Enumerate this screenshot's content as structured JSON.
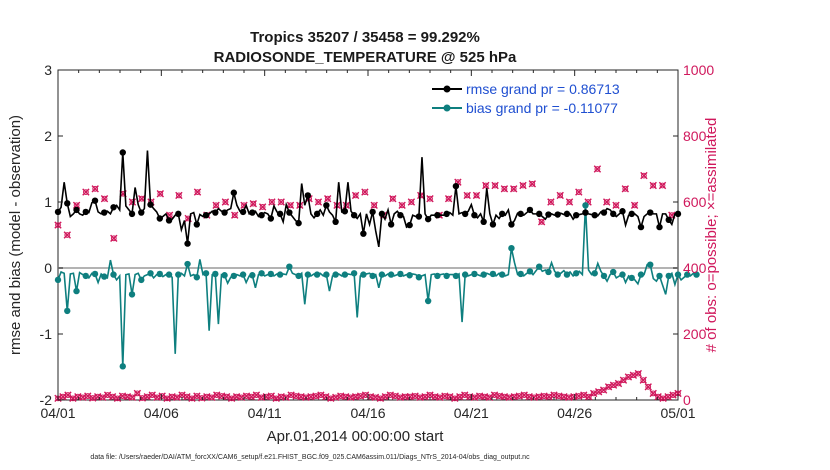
{
  "chart_data": {
    "type": "line",
    "title": "Tropics 35207 / 35458 = 99.292%",
    "subtitle": "RADIOSONDE_TEMPERATURE @ 525 hPa",
    "xlabel": "Apr.01,2014 00:00:00 start",
    "ylabel": "rmse and bias (model - observation)",
    "ylabel_right": "# of obs: o=possible; ×=assimilated",
    "footnote": "data file: /Users/raeder/DAI/ATM_forcXX/CAM6_setup/f.e21.FHIST_BGC.f09_025.CAM6assim.011/Diags_NTrS_2014-04/obs_diag_output.nc",
    "x_tick_labels": [
      "04/01",
      "04/06",
      "04/11",
      "04/16",
      "04/21",
      "04/26",
      "05/01"
    ],
    "y_ticks": [
      -2,
      -1,
      0,
      1,
      2,
      3
    ],
    "y_right_ticks": [
      0,
      200,
      400,
      600,
      800,
      1000
    ],
    "ylim": [
      -2,
      3
    ],
    "ylim_right": [
      0,
      1000
    ],
    "xlim_days": [
      0,
      30
    ],
    "legend": {
      "rmse_label": "rmse grand pr = 0.86713",
      "bias_label": "bias grand pr = -0.11077"
    },
    "colors": {
      "rmse": "#000000",
      "bias": "#0e7f7f",
      "obs": "#d0185c",
      "zero_line": "#b3b3b3"
    },
    "rmse": [
      0.85,
      0.92,
      1.3,
      0.98,
      0.78,
      0.82,
      0.88,
      0.82,
      0.8,
      0.85,
      0.84,
      0.99,
      1.02,
      0.85,
      0.82,
      0.84,
      0.86,
      0.82,
      0.92,
      0.95,
      0.88,
      1.75,
      0.94,
      0.88,
      0.82,
      1.22,
      0.96,
      0.84,
      0.9,
      1.78,
      0.96,
      0.9,
      0.85,
      0.75,
      0.78,
      0.82,
      0.72,
      0.74,
      0.8,
      0.82,
      0.58,
      0.72,
      0.37,
      0.82,
      0.84,
      0.66,
      0.81,
      0.78,
      0.8,
      0.82,
      0.86,
      0.84,
      0.9,
      0.86,
      0.84,
      0.88,
      0.9,
      1.14,
      0.95,
      0.86,
      0.85,
      0.95,
      0.82,
      0.84,
      0.86,
      0.78,
      0.8,
      0.84,
      0.82,
      0.75,
      0.94,
      0.85,
      0.82,
      0.7,
      0.96,
      0.84,
      0.78,
      0.72,
      0.68,
      1.28,
      0.95,
      1.1,
      0.82,
      0.76,
      0.82,
      0.88,
      0.8,
      0.95,
      0.85,
      0.8,
      0.7,
      1.3,
      0.85,
      0.86,
      1.3,
      0.86,
      0.8,
      0.75,
      0.82,
      0.52,
      0.82,
      0.66,
      0.85,
      0.56,
      0.32,
      0.82,
      0.74,
      0.88,
      0.66,
      0.82,
      0.86,
      0.8,
      0.78,
      0.62,
      0.65,
      0.8,
      0.78,
      0.78,
      1.68,
      0.82,
      0.74,
      0.8,
      0.8,
      0.8,
      0.8,
      0.8,
      0.82,
      0.84,
      0.8,
      1.24,
      0.82,
      0.84,
      0.82,
      0.86,
      0.96,
      0.8,
      0.76,
      0.82,
      0.7,
      1.21,
      0.82,
      0.66,
      0.8,
      0.75,
      0.82,
      0.8,
      0.88,
      0.66,
      0.72,
      0.83,
      0.82,
      0.8,
      0.84,
      0.88,
      0.82,
      0.82,
      0.82,
      0.78,
      0.74,
      0.81,
      0.82,
      0.8,
      0.81,
      0.83,
      0.81,
      0.82,
      0.82,
      0.74,
      0.8,
      0.81,
      0.82,
      0.84,
      0.82,
      0.81,
      0.8,
      0.79,
      0.85,
      0.84,
      0.9,
      0.88,
      0.82,
      0.78,
      0.82,
      0.86,
      0.65,
      0.8,
      0.82,
      0.82,
      0.78,
      0.62,
      0.78,
      0.82,
      0.84,
      0.82,
      0.82,
      0.62,
      0.82,
      0.82,
      0.73,
      0.66,
      0.82,
      0.82
    ],
    "bias": [
      -0.18,
      -0.06,
      -0.08,
      -0.65,
      -0.09,
      -0.08,
      -0.35,
      -0.07,
      -0.1,
      -0.12,
      -0.15,
      -0.08,
      -0.09,
      -0.22,
      -0.09,
      -0.13,
      -0.15,
      0.12,
      -0.1,
      -0.18,
      -0.12,
      -1.49,
      -0.1,
      -0.09,
      -0.4,
      -0.1,
      -0.08,
      -0.18,
      -0.12,
      -0.1,
      -0.08,
      -0.15,
      -0.1,
      -0.09,
      -0.13,
      -0.1,
      -0.1,
      -0.14,
      -1.3,
      -0.1,
      -0.08,
      -0.12,
      0.06,
      -0.12,
      -0.1,
      -0.14,
      0.13,
      -0.1,
      -0.08,
      -0.95,
      -0.1,
      -0.09,
      -0.85,
      -0.1,
      -0.11,
      -0.23,
      -0.14,
      -0.12,
      -0.1,
      -0.12,
      -0.1,
      -0.22,
      -0.12,
      -0.11,
      -0.3,
      -0.1,
      -0.08,
      -0.12,
      -0.1,
      -0.09,
      -0.12,
      -0.09,
      -0.1,
      -0.09,
      -0.1,
      0.02,
      -0.08,
      -0.1,
      -0.12,
      -0.08,
      -0.55,
      -0.1,
      -0.12,
      -0.09,
      -0.1,
      -0.08,
      -0.12,
      -0.1,
      -0.35,
      -0.12,
      -0.1,
      -0.09,
      -0.12,
      -0.1,
      -0.09,
      -0.1,
      -0.08,
      -0.75,
      -0.12,
      -0.1,
      -0.09,
      -0.08,
      -0.12,
      -0.1,
      -0.3,
      -0.1,
      -0.12,
      -0.09,
      -0.1,
      -0.12,
      -0.1,
      -0.09,
      -0.12,
      -0.1,
      -0.11,
      -0.09,
      -0.1,
      -0.14,
      -0.12,
      -0.1,
      -0.5,
      -0.1,
      -0.09,
      -0.12,
      -0.1,
      -0.09,
      -0.12,
      -0.1,
      -0.1,
      -0.12,
      -0.09,
      -0.82,
      -0.1,
      -0.12,
      -0.1,
      -0.09,
      -0.1,
      -0.12,
      -0.1,
      -0.08,
      -0.1,
      -0.09,
      -0.12,
      -0.08,
      -0.1,
      -0.12,
      -0.1,
      0.3,
      0.08,
      -0.1,
      -0.09,
      -0.12,
      -0.08,
      -0.05,
      -0.1,
      -0.04,
      0.02,
      -0.05,
      -0.03,
      -0.06,
      0.08,
      -0.05,
      -0.1,
      -0.08,
      -0.04,
      -0.1,
      -0.06,
      -0.12,
      -0.08,
      -0.05,
      -0.1,
      0.95,
      -0.03,
      -0.1,
      -0.08,
      0.07,
      -0.05,
      -0.12,
      -0.2,
      -0.1,
      -0.06,
      -0.15,
      -0.12,
      -0.1,
      -0.22,
      -0.12,
      -0.15,
      -0.18,
      -0.24,
      -0.1,
      -0.1,
      0.05,
      0.05,
      -0.16,
      -0.2,
      -0.12,
      -0.26,
      -0.4,
      -0.12,
      -0.08,
      -0.25,
      -0.1,
      -0.18,
      -0.14,
      -0.1,
      -0.12,
      -0.08,
      -0.1
    ],
    "obs_possible": [
      530,
      555,
      580,
      500,
      540,
      600,
      590,
      570,
      560,
      630,
      575,
      550,
      640,
      565,
      590,
      610,
      500,
      510,
      490,
      580,
      560,
      625,
      615,
      610,
      600,
      590,
      555,
      610,
      575,
      570,
      600,
      620,
      595,
      625,
      585,
      570,
      560,
      540,
      610,
      620,
      590,
      560,
      550,
      560,
      610,
      630,
      500,
      610,
      560,
      550,
      580,
      590,
      595,
      600,
      600,
      560,
      610,
      560,
      580,
      590,
      590,
      600,
      590,
      595,
      600,
      575,
      585,
      555,
      590,
      600,
      600,
      620,
      600,
      610,
      610,
      590,
      620,
      600,
      590,
      610,
      600,
      610,
      570,
      620,
      600,
      600,
      590,
      610,
      600,
      600,
      590,
      560,
      600,
      590,
      610,
      560,
      620,
      600,
      600,
      630,
      560,
      610,
      590,
      610,
      590,
      560,
      560,
      620,
      610,
      580,
      600,
      590,
      600,
      610,
      600,
      615,
      610,
      620,
      640,
      600,
      610,
      600,
      620,
      560,
      590,
      600,
      610,
      620,
      630,
      660,
      630,
      610,
      620,
      600,
      640,
      620,
      610,
      620,
      650,
      640,
      600,
      650,
      680,
      600,
      640,
      630,
      660,
      640,
      660,
      665,
      650,
      660,
      640,
      655,
      680,
      700,
      540,
      670,
      640,
      600,
      560,
      610,
      620,
      660,
      580,
      600,
      600,
      640,
      630,
      620,
      620,
      600,
      660,
      600,
      700,
      640,
      630,
      600,
      640,
      620,
      590,
      580,
      600,
      640,
      600,
      600,
      590,
      650,
      620,
      680,
      620,
      640,
      650,
      600,
      640,
      650,
      650,
      660,
      560,
      600,
      600
    ],
    "obs_zero_band": [
      5,
      10,
      15,
      5,
      10,
      8,
      12,
      6,
      10,
      8,
      15,
      10,
      5,
      12,
      10,
      8,
      20,
      6,
      10,
      15,
      8,
      12,
      5,
      10,
      8,
      15,
      10,
      5,
      12,
      6,
      10,
      8,
      15,
      12,
      10,
      5,
      10,
      8,
      12,
      10,
      15,
      8,
      10,
      12,
      5,
      10,
      8,
      15,
      12,
      10,
      8,
      10,
      12,
      15,
      10,
      5,
      8,
      12,
      10,
      8,
      10,
      12,
      15,
      10,
      8,
      5,
      10,
      15,
      12,
      8,
      10,
      10,
      12,
      8,
      10,
      15,
      10,
      8,
      12,
      10,
      5,
      10,
      15,
      10,
      8,
      12,
      10,
      8,
      15,
      12,
      10,
      8,
      10,
      12,
      15,
      10,
      8,
      10,
      12,
      10,
      15,
      12,
      10,
      8,
      10,
      12,
      15,
      10,
      20,
      25,
      30,
      40,
      45,
      50,
      60,
      70,
      75,
      80,
      60,
      40,
      20,
      10,
      5,
      10,
      15,
      20
    ]
  }
}
